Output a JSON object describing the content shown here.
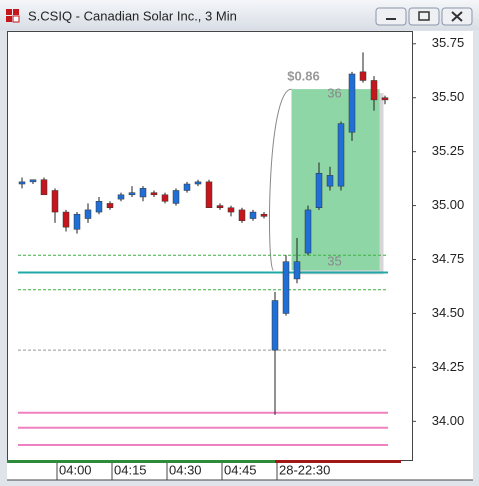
{
  "window": {
    "title": "S.CSIQ - Canadian Solar Inc., 3 Min"
  },
  "chart_data": {
    "type": "candlestick",
    "categories": [
      null,
      null,
      null,
      "04:00",
      null,
      null,
      null,
      null,
      "04:15",
      null,
      null,
      null,
      null,
      "04:30",
      null,
      null,
      null,
      null,
      "04:45",
      null,
      null,
      null,
      null,
      "28-22:30",
      null,
      null,
      null,
      null,
      null,
      null,
      null,
      null,
      null,
      null
    ],
    "open": [
      35.1,
      35.11,
      35.12,
      35.07,
      34.97,
      34.89,
      34.94,
      34.97,
      35.01,
      35.03,
      35.05,
      35.04,
      35.06,
      35.05,
      35.01,
      35.07,
      35.1,
      35.11,
      35.0,
      34.99,
      34.98,
      34.94,
      34.96,
      34.33,
      34.5,
      34.66,
      34.78,
      34.99,
      35.09,
      35.09,
      35.34,
      35.62,
      35.58,
      35.5
    ],
    "high": [
      35.13,
      35.12,
      35.13,
      35.08,
      34.98,
      34.97,
      35.01,
      35.04,
      35.02,
      35.06,
      35.09,
      35.09,
      35.07,
      35.06,
      35.08,
      35.11,
      35.12,
      35.12,
      35.01,
      35.0,
      34.99,
      34.98,
      34.97,
      34.6,
      34.77,
      34.85,
      35.0,
      35.2,
      35.18,
      35.39,
      35.62,
      35.71,
      35.6,
      35.51
    ],
    "low": [
      35.08,
      35.1,
      35.05,
      34.92,
      34.88,
      34.87,
      34.92,
      34.96,
      34.98,
      35.02,
      35.04,
      35.02,
      35.04,
      35.01,
      35.0,
      35.06,
      35.09,
      34.99,
      34.98,
      34.95,
      34.92,
      34.93,
      34.94,
      34.03,
      34.49,
      34.64,
      34.77,
      34.98,
      35.07,
      35.07,
      35.3,
      35.57,
      35.44,
      35.47
    ],
    "close": [
      35.11,
      35.12,
      35.05,
      34.97,
      34.9,
      34.96,
      34.98,
      35.02,
      34.99,
      35.05,
      35.06,
      35.08,
      35.05,
      35.02,
      35.07,
      35.1,
      35.11,
      34.99,
      34.99,
      34.97,
      34.93,
      34.97,
      34.95,
      34.56,
      34.74,
      34.74,
      34.98,
      35.15,
      35.14,
      35.38,
      35.61,
      35.58,
      35.49,
      35.49
    ],
    "up_color": "#1f6fd6",
    "down_color": "#c4161c",
    "ylim": [
      33.83,
      35.8
    ],
    "yticks": [
      {
        "value": 34.0,
        "label": "34.00"
      },
      34.25,
      {
        "value": 34.5,
        "label": "34.50"
      },
      34.75,
      {
        "value": 35.0,
        "label": "35.00"
      },
      35.25,
      {
        "value": 35.5,
        "label": "35.50"
      },
      35.75
    ],
    "levels": [
      {
        "value": 34.69,
        "color": "#20a8a8",
        "dash": false
      },
      {
        "value": 34.77,
        "color": "#3cb043",
        "dash": true
      },
      {
        "value": 34.61,
        "color": "#3cb043",
        "dash": true
      },
      {
        "value": 34.33,
        "color": "#999999",
        "dash": true
      },
      {
        "value": 34.04,
        "color": "#f080c0",
        "dash": false
      },
      {
        "value": 33.97,
        "color": "#f080c0",
        "dash": false
      },
      {
        "value": 33.89,
        "color": "#f080c0",
        "dash": false
      }
    ],
    "highlight": {
      "start": 25,
      "end": 32,
      "low": 34.7,
      "high": 35.54,
      "color": "#8fd6a6",
      "label": "$0.86",
      "top_label": "36",
      "bottom_label": "35"
    }
  }
}
